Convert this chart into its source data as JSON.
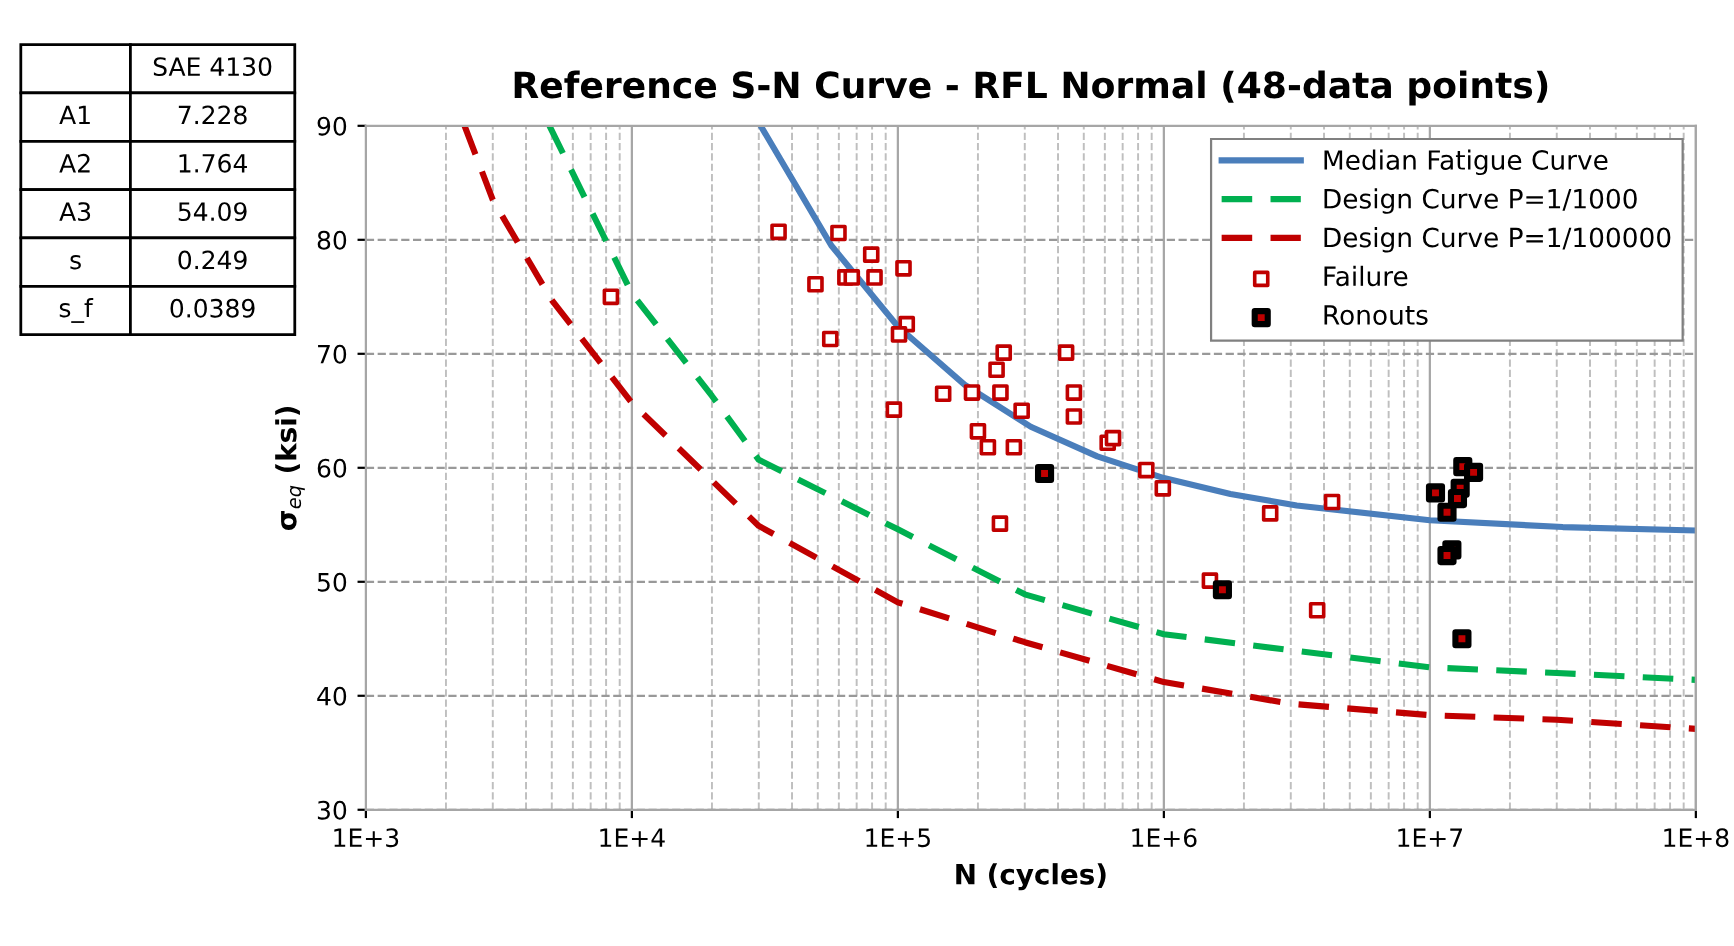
{
  "chart_data": [
    {
      "type": "other",
      "categories": [
        "SAE 4130"
      ],
      "y_categories": [
        "A1",
        "A2",
        "A3",
        "s",
        "s_f"
      ],
      "cell_labels": [
        [
          "7.228"
        ],
        [
          "1.764"
        ],
        [
          "54.09"
        ],
        [
          "0.249"
        ],
        [
          "0.0389"
        ]
      ]
    },
    {
      "type": "line",
      "title": "Reference S-N Curve - RFL Normal (48-data points)",
      "xlabel": "N (cycles)",
      "ylabel": "σ$_{eq}$ (ksi)",
      "log": "x",
      "xlim": [
        1000,
        100000000
      ],
      "ylim": [
        30,
        90
      ],
      "xticks": [
        {
          "value": 1000,
          "label": "1E+3"
        },
        {
          "value": 10000,
          "label": "1E+4"
        },
        {
          "value": 100000,
          "label": "1E+5"
        },
        {
          "value": 1000000,
          "label": "1E+6"
        },
        {
          "value": 10000000,
          "label": "1E+7"
        },
        {
          "value": 100000000,
          "label": "1E+8"
        }
      ],
      "yticks": [
        30,
        40,
        50,
        60,
        70,
        80,
        90
      ],
      "grid": true,
      "legend": "top right",
      "series": [
        {
          "name": "Median Fatigue Curve",
          "type": "line",
          "color": "#4a7ebb",
          "line_style": "solid",
          "marker": "none",
          "x": [
            30500,
            56200,
            100000,
            178000,
            316000,
            562000,
            1000000,
            1780000,
            3160000,
            10000000,
            31600000,
            100000000
          ],
          "values": [
            90,
            79.5,
            72.4,
            67.3,
            63.6,
            61.0,
            59.1,
            57.7,
            56.7,
            55.4,
            54.8,
            54.5
          ]
        },
        {
          "name": "Design Curve P=1/1000",
          "type": "line",
          "color": "#00b050",
          "line_style": "dashed",
          "marker": "none",
          "x": [
            4900,
            10000,
            20000,
            30000,
            100000,
            300000,
            1000000,
            3000000,
            10000000,
            30000000,
            100000000
          ],
          "values": [
            90,
            75.3,
            66.3,
            60.7,
            54.6,
            48.9,
            45.4,
            44.0,
            42.5,
            42.0,
            41.4
          ]
        },
        {
          "name": "Design Curve P=1/100000",
          "type": "line",
          "color": "#c00000",
          "line_style": "dashed",
          "marker": "none",
          "x": [
            2350,
            3000,
            5000,
            10000,
            30000,
            100000,
            300000,
            1000000,
            3000000,
            10000000,
            30000000,
            100000000
          ],
          "values": [
            90,
            83.5,
            74.7,
            65.7,
            54.9,
            48.2,
            44.7,
            41.2,
            39.3,
            38.3,
            37.9,
            37.1
          ]
        },
        {
          "name": "Failure",
          "type": "scatter",
          "color": "#c00000",
          "marker": "square",
          "x": [
            35600,
            59800,
            49000,
            63500,
            67100,
            55700,
            79400,
            81700,
            105000,
            108000,
            101000,
            96600,
            8340,
            148000,
            190000,
            243000,
            250000,
            235000,
            292000,
            200000,
            218000,
            273000,
            242000,
            429000,
            459000,
            459000,
            615000,
            644000,
            859000,
            991000,
            2510000,
            4290000,
            1490000,
            3770000
          ],
          "values": [
            80.7,
            80.6,
            76.1,
            76.7,
            76.7,
            71.3,
            78.7,
            76.7,
            77.5,
            72.6,
            71.7,
            65.1,
            75.0,
            66.5,
            66.6,
            66.6,
            70.1,
            68.6,
            65.0,
            63.2,
            61.8,
            61.8,
            55.1,
            70.1,
            66.6,
            64.5,
            62.2,
            62.6,
            59.8,
            58.2,
            56.0,
            57.0,
            50.1,
            47.5
          ]
        },
        {
          "name": "Ronouts",
          "type": "scatter",
          "color": "#000000",
          "marker": "square",
          "x": [
            356000,
            1660000,
            10500000,
            13300000,
            14600000,
            13000000,
            12700000,
            11600000,
            12100000,
            11600000,
            13200000
          ],
          "values": [
            59.5,
            49.3,
            57.8,
            60.1,
            59.6,
            58.2,
            57.3,
            56.1,
            52.8,
            52.3,
            45.0
          ]
        }
      ]
    }
  ]
}
